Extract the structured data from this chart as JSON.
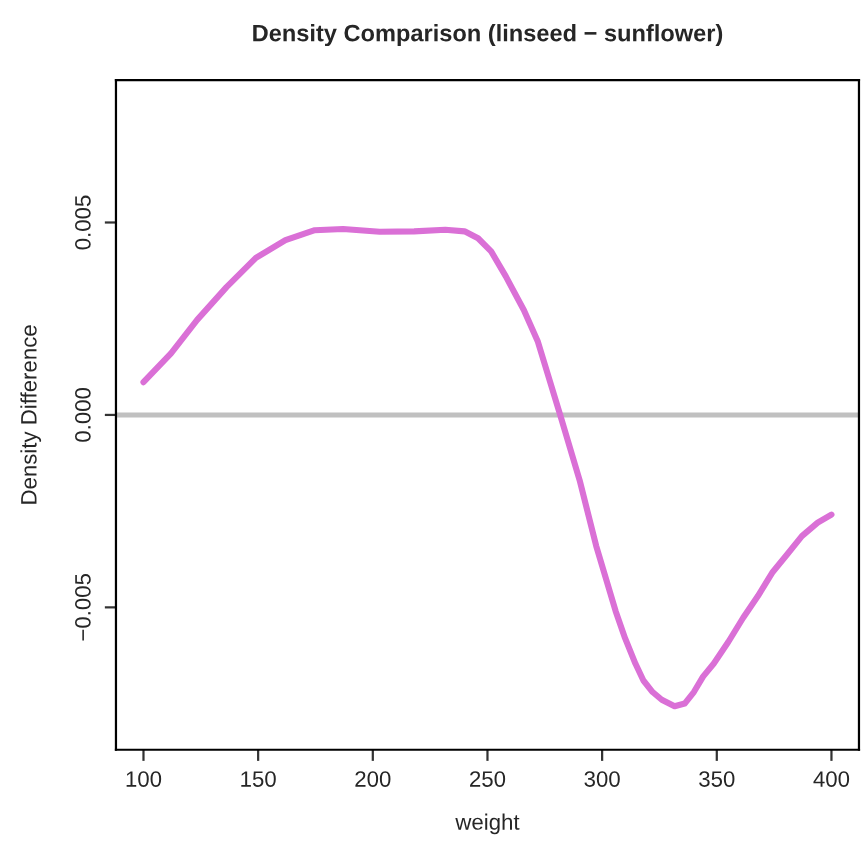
{
  "chart_data": {
    "type": "line",
    "title": "Density Comparison (linseed − sunflower)",
    "xlabel": "weight",
    "ylabel": "Density Difference",
    "series": [
      {
        "color": "#da70d6",
        "x": [
          100,
          112,
          123.4,
          136.2,
          149,
          161.9,
          174.7,
          187,
          203,
          218,
          231.6,
          240,
          245.9,
          251.6,
          258,
          265.9,
          272,
          281.7,
          290.2,
          297.4,
          305.9,
          310,
          314.5,
          318,
          322,
          326,
          331.6,
          336,
          340,
          344,
          348.7,
          355,
          361.5,
          368,
          374.4,
          381,
          387.1,
          394,
          400
        ],
        "values": [
          0.00085,
          0.0016,
          0.00247,
          0.00332,
          0.00408,
          0.00454,
          0.0048,
          0.00483,
          0.00476,
          0.00477,
          0.00481,
          0.00477,
          0.00459,
          0.00425,
          0.0036,
          0.00272,
          0.0019,
          0.0,
          -0.0017,
          -0.0034,
          -0.0051,
          -0.0058,
          -0.00646,
          -0.0069,
          -0.0072,
          -0.0074,
          -0.00757,
          -0.0075,
          -0.0072,
          -0.0068,
          -0.00646,
          -0.0059,
          -0.00527,
          -0.0047,
          -0.00408,
          -0.0036,
          -0.00315,
          -0.0028,
          -0.00259
        ]
      }
    ],
    "xlim": [
      88,
      412
    ],
    "ylim": [
      -0.0087,
      0.0087
    ],
    "xticks": [
      100,
      150,
      200,
      250,
      300,
      350,
      400
    ],
    "yticks": [
      {
        "value": -0.005,
        "label": "−0.005"
      },
      {
        "value": 0,
        "label": "0.000"
      },
      {
        "value": 0.005,
        "label": "0.005"
      }
    ],
    "ref_lines": [
      {
        "axis": "y",
        "value": 0,
        "color": "#c0c0c0"
      }
    ],
    "grid": false,
    "legend": false
  }
}
